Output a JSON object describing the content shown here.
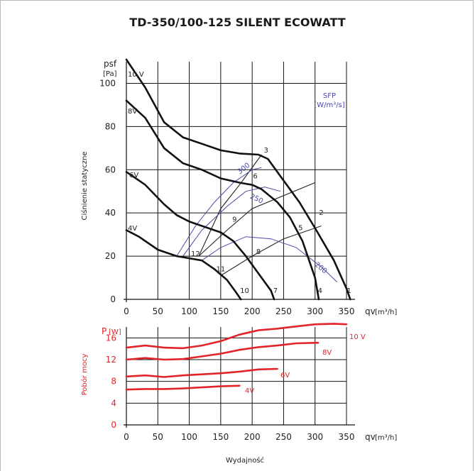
{
  "chart_data": [
    {
      "type": "line",
      "title": "TD-350/100-125 SILENT ECOWATT",
      "y_symbol": "psf",
      "y_unit": "[Pa]",
      "ylabel": "Ciśnienie statyczne",
      "x_symbol": "qv",
      "x_unit": "[m³/h]",
      "xlim": [
        0,
        350
      ],
      "ylim": [
        0,
        110
      ],
      "x_ticks": [
        "0",
        "50",
        "100",
        "150",
        "200",
        "250",
        "300",
        "350"
      ],
      "y_ticks": [
        "0",
        "20",
        "40",
        "60",
        "80",
        "100"
      ],
      "series": [
        {
          "name": "10 V",
          "points": [
            [
              0,
              111
            ],
            [
              30,
              98
            ],
            [
              60,
              82
            ],
            [
              90,
              75
            ],
            [
              120,
              72
            ],
            [
              150,
              69
            ],
            [
              180,
              67.5
            ],
            [
              210,
              67
            ],
            [
              225,
              65
            ],
            [
              250,
              55
            ],
            [
              275,
              45
            ],
            [
              300,
              33
            ],
            [
              330,
              18
            ],
            [
              350,
              5
            ],
            [
              356,
              0
            ]
          ]
        },
        {
          "name": "8V",
          "points": [
            [
              0,
              92
            ],
            [
              30,
              84
            ],
            [
              60,
              70
            ],
            [
              90,
              63
            ],
            [
              120,
              60
            ],
            [
              150,
              56
            ],
            [
              180,
              54
            ],
            [
              200,
              53
            ],
            [
              215,
              51
            ],
            [
              240,
              45
            ],
            [
              260,
              38
            ],
            [
              280,
              27
            ],
            [
              300,
              10
            ],
            [
              306,
              0
            ]
          ]
        },
        {
          "name": "6V",
          "points": [
            [
              0,
              59
            ],
            [
              30,
              53
            ],
            [
              60,
              44
            ],
            [
              80,
              39
            ],
            [
              100,
              36
            ],
            [
              130,
              33
            ],
            [
              150,
              31
            ],
            [
              170,
              27
            ],
            [
              190,
              20
            ],
            [
              210,
              12
            ],
            [
              230,
              4
            ],
            [
              235,
              0
            ]
          ]
        },
        {
          "name": "4V",
          "points": [
            [
              0,
              32
            ],
            [
              20,
              29
            ],
            [
              50,
              23
            ],
            [
              80,
              20
            ],
            [
              100,
              19
            ],
            [
              120,
              18
            ],
            [
              140,
              14
            ],
            [
              160,
              9
            ],
            [
              175,
              3
            ],
            [
              182,
              0
            ]
          ]
        }
      ],
      "sfp_label": "SFP",
      "sfp_unit": "[W/m³/s]",
      "sfp_curves": [
        {
          "label": "300",
          "points": [
            [
              80,
              20
            ],
            [
              110,
              34
            ],
            [
              140,
              45
            ],
            [
              170,
              54
            ],
            [
              200,
              60
            ],
            [
              215,
              61
            ]
          ]
        },
        {
          "label": "250",
          "points": [
            [
              90,
              20
            ],
            [
              120,
              32
            ],
            [
              160,
              43
            ],
            [
              190,
              50
            ],
            [
              220,
              52
            ],
            [
              245,
              50
            ]
          ]
        },
        {
          "label": "200",
          "points": [
            [
              120,
              18
            ],
            [
              150,
              24
            ],
            [
              190,
              29
            ],
            [
              230,
              28
            ],
            [
              270,
              24
            ],
            [
              310,
              15
            ],
            [
              335,
              8
            ]
          ]
        }
      ],
      "system_lines": [
        {
          "points": [
            [
              115,
              20
            ],
            [
              150,
              42
            ],
            [
              180,
              53
            ],
            [
              215,
              67
            ]
          ]
        },
        {
          "points": [
            [
              115,
              20
            ],
            [
              160,
              32
            ],
            [
              200,
              42
            ],
            [
              300,
              54
            ]
          ]
        },
        {
          "points": [
            [
              150,
              11
            ],
            [
              200,
              20
            ],
            [
              250,
              28
            ],
            [
              310,
              34
            ]
          ]
        }
      ],
      "point_labels": [
        {
          "label": "1",
          "x": 354,
          "y": 3
        },
        {
          "label": "2",
          "x": 310,
          "y": 39
        },
        {
          "label": "3",
          "x": 222,
          "y": 68
        },
        {
          "label": "4",
          "x": 308,
          "y": 3
        },
        {
          "label": "5",
          "x": 277,
          "y": 32
        },
        {
          "label": "6",
          "x": 205,
          "y": 56
        },
        {
          "label": "7",
          "x": 237,
          "y": 3
        },
        {
          "label": "8",
          "x": 210,
          "y": 21
        },
        {
          "label": "9",
          "x": 172,
          "y": 36
        },
        {
          "label": "10",
          "x": 188,
          "y": 3
        },
        {
          "label": "11",
          "x": 150,
          "y": 13
        },
        {
          "label": "12",
          "x": 110,
          "y": 20
        }
      ]
    },
    {
      "type": "line",
      "y_symbol": "P",
      "y_unit": "[W]",
      "ylabel": "Pobór mocy",
      "x_symbol": "qv",
      "x_unit": "[m³/h]",
      "xlabel": "Wydajność",
      "xlim": [
        0,
        350
      ],
      "ylim": [
        0,
        18
      ],
      "x_ticks": [
        "0",
        "50",
        "100",
        "150",
        "200",
        "250",
        "300",
        "350"
      ],
      "y_ticks": [
        "0",
        "4",
        "8",
        "12",
        "16"
      ],
      "series": [
        {
          "name": "10 V",
          "points": [
            [
              0,
              14.2
            ],
            [
              30,
              14.6
            ],
            [
              60,
              14.2
            ],
            [
              90,
              14.1
            ],
            [
              120,
              14.6
            ],
            [
              150,
              15.4
            ],
            [
              180,
              16.6
            ],
            [
              210,
              17.4
            ],
            [
              240,
              17.7
            ],
            [
              270,
              18.1
            ],
            [
              300,
              18.5
            ],
            [
              330,
              18.6
            ],
            [
              350,
              18.5
            ]
          ]
        },
        {
          "name": "8V",
          "points": [
            [
              0,
              12.0
            ],
            [
              30,
              12.3
            ],
            [
              60,
              12.0
            ],
            [
              90,
              12.1
            ],
            [
              120,
              12.6
            ],
            [
              150,
              13.1
            ],
            [
              180,
              13.8
            ],
            [
              210,
              14.3
            ],
            [
              240,
              14.6
            ],
            [
              270,
              15.0
            ],
            [
              305,
              15.1
            ]
          ]
        },
        {
          "name": "6V",
          "points": [
            [
              0,
              8.9
            ],
            [
              30,
              9.1
            ],
            [
              60,
              8.8
            ],
            [
              90,
              9.1
            ],
            [
              120,
              9.3
            ],
            [
              150,
              9.5
            ],
            [
              180,
              9.8
            ],
            [
              210,
              10.2
            ],
            [
              240,
              10.3
            ]
          ]
        },
        {
          "name": "4V",
          "points": [
            [
              0,
              6.5
            ],
            [
              30,
              6.6
            ],
            [
              60,
              6.6
            ],
            [
              90,
              6.7
            ],
            [
              120,
              6.9
            ],
            [
              150,
              7.1
            ],
            [
              180,
              7.2
            ]
          ]
        }
      ]
    }
  ]
}
